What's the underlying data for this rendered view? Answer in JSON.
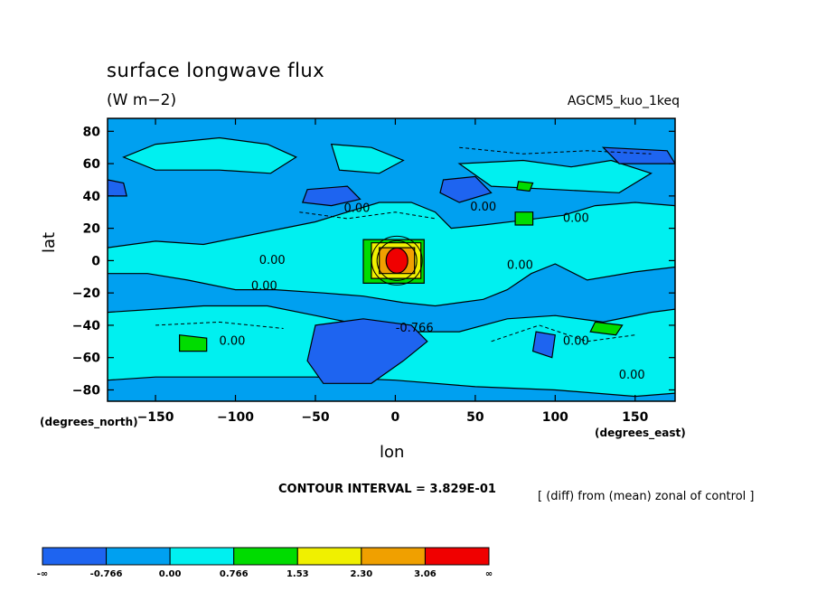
{
  "chart_data": {
    "type": "heatmap",
    "title": "surface longwave flux",
    "units": "(W m−2)",
    "run_label": "AGCM5_kuo_1keq",
    "xlabel": "lon",
    "ylabel": "lat",
    "x_units": "(degrees_east)",
    "y_units": "(degrees_north)",
    "xlim": [
      -180,
      175
    ],
    "ylim": [
      -87,
      88
    ],
    "x_ticks": [
      -150,
      -100,
      -50,
      0,
      50,
      100,
      150
    ],
    "y_ticks": [
      80,
      60,
      40,
      20,
      0,
      -20,
      -40,
      -60,
      -80
    ],
    "contour_interval_text": "CONTOUR INTERVAL = 3.829E-01",
    "note": "[ (diff) from (mean) zonal of control ]",
    "contour_labels": [
      {
        "text": "0.00",
        "lon": -24,
        "lat": 30
      },
      {
        "text": "0.00",
        "lon": 55,
        "lat": 31
      },
      {
        "text": "0.00",
        "lon": 113,
        "lat": 24
      },
      {
        "text": "0.00",
        "lon": -77,
        "lat": -2
      },
      {
        "text": "0.00",
        "lon": 78,
        "lat": -5
      },
      {
        "text": "0.00",
        "lon": -82,
        "lat": -18
      },
      {
        "text": "-0.766",
        "lon": 12,
        "lat": -44
      },
      {
        "text": "0.00",
        "lon": -102,
        "lat": -52
      },
      {
        "text": "0.00",
        "lon": 113,
        "lat": -52
      },
      {
        "text": "0.00",
        "lon": 148,
        "lat": -73
      }
    ],
    "colorbar": {
      "colors": [
        "#1e64f0",
        "#00a0f0",
        "#00f0f0",
        "#00dc00",
        "#f0f000",
        "#f0a000",
        "#f00000"
      ],
      "labels": [
        "-∞",
        "-0.766",
        "0.00",
        "0.766",
        "1.53",
        "2.30",
        "3.06",
        "∞"
      ]
    },
    "level_colors": {
      "below_-0.766": "#1e64f0",
      "-0.766_to_0": "#00a0f0",
      "0_to_0.766": "#00f0f0",
      "0.766_to_1.53": "#00dc00",
      "1.53_to_2.30": "#f0f000",
      "2.30_to_3.06": "#f0a000",
      "above_3.06": "#f00000"
    }
  }
}
